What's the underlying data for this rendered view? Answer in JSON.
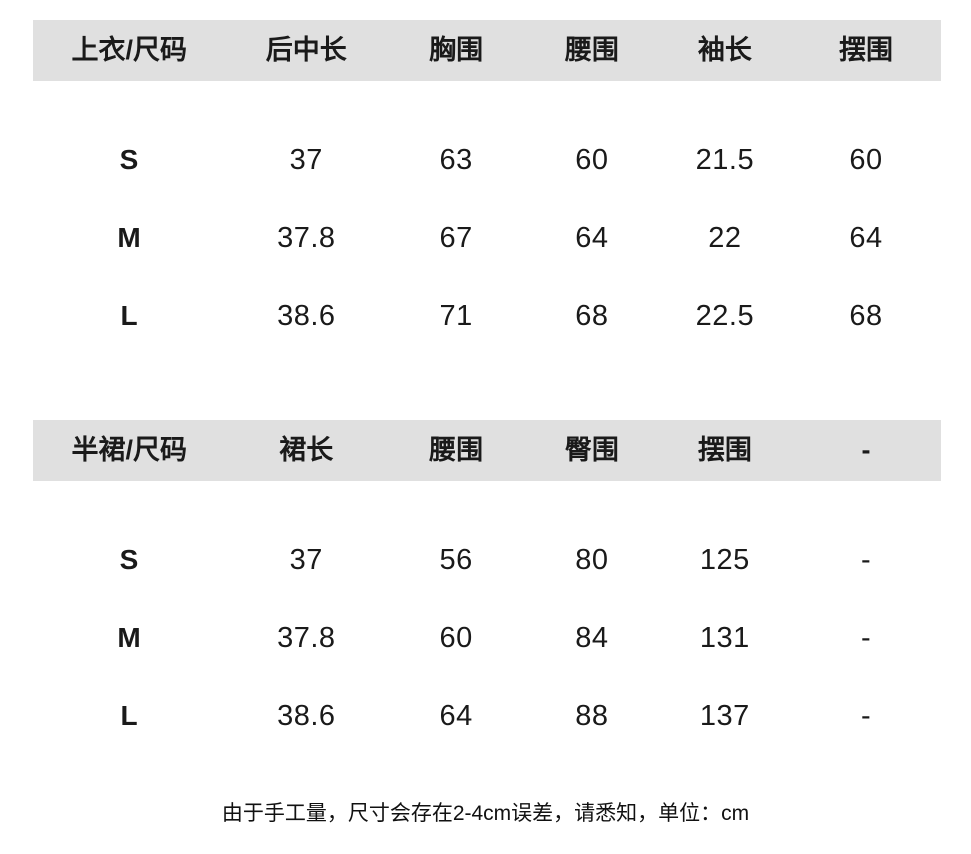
{
  "page": {
    "background_color": "#ffffff",
    "header_band_color": "#e0e0e0",
    "text_color": "#1a1a1a",
    "unit": "cm"
  },
  "tables": [
    {
      "name": "top-garment-size-table",
      "headers": [
        "上衣/尺码",
        "后中长",
        "胸围",
        "腰围",
        "袖长",
        "摆围"
      ],
      "rows": [
        {
          "size": "S",
          "values": [
            "37",
            "63",
            "60",
            "21.5",
            "60"
          ]
        },
        {
          "size": "M",
          "values": [
            "37.8",
            "67",
            "64",
            "22",
            "64"
          ]
        },
        {
          "size": "L",
          "values": [
            "38.6",
            "71",
            "68",
            "22.5",
            "68"
          ]
        }
      ]
    },
    {
      "name": "skirt-size-table",
      "headers": [
        "半裙/尺码",
        "裙长",
        "腰围",
        "臀围",
        "摆围",
        "-"
      ],
      "rows": [
        {
          "size": "S",
          "values": [
            "37",
            "56",
            "80",
            "125",
            "-"
          ]
        },
        {
          "size": "M",
          "values": [
            "37.8",
            "60",
            "84",
            "131",
            "-"
          ]
        },
        {
          "size": "L",
          "values": [
            "38.6",
            "64",
            "88",
            "137",
            "-"
          ]
        }
      ]
    }
  ],
  "footer": {
    "note": "由于手工量，尺寸会存在2-4cm误差，请悉知，单位：cm"
  }
}
